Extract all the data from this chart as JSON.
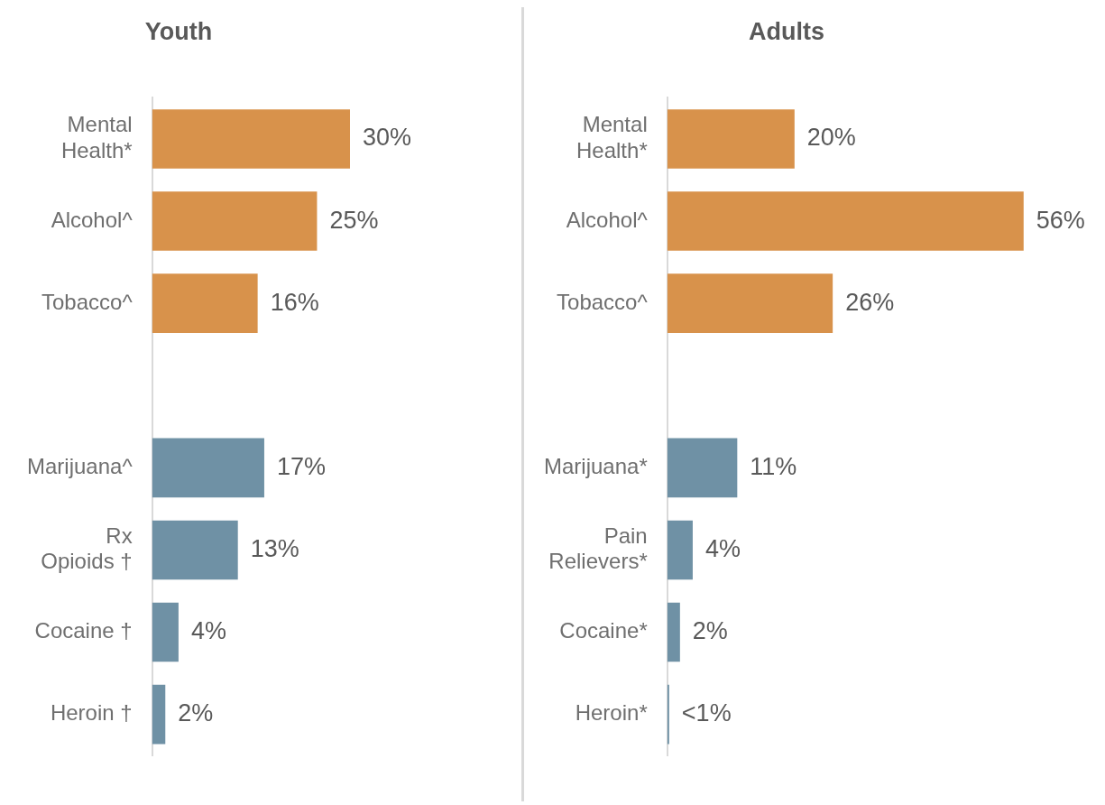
{
  "chart_data": [
    {
      "type": "bar",
      "orientation": "horizontal",
      "title": "Youth",
      "categories": [
        "Mental Health*",
        "Alcohol^",
        "Tobacco^",
        null,
        "Marijuana^",
        "Rx Opioids †",
        "Cocaine †",
        "Heroin †"
      ],
      "values": [
        30,
        25,
        16,
        null,
        17,
        13,
        4,
        2
      ],
      "colors": [
        "#d8924b",
        "#d8924b",
        "#d8924b",
        "#d8924b",
        "#6f91a5",
        "#6f91a5",
        "#6f91a5",
        "#6f91a5"
      ],
      "value_labels": [
        "30%",
        "25%",
        "16%",
        null,
        "17%",
        "13%",
        "4%",
        "2%"
      ],
      "tick_labels": "y",
      "grid": false
    },
    {
      "type": "bar",
      "orientation": "horizontal",
      "title": "Adults",
      "categories": [
        "Mental Health*",
        "Alcohol^",
        "Tobacco^",
        null,
        "Marijuana*",
        "Pain Relievers*",
        "Cocaine*",
        "Heroin*"
      ],
      "values": [
        20,
        56,
        26,
        null,
        11,
        4,
        2,
        0.3
      ],
      "colors": [
        "#d8924b",
        "#d8924b",
        "#d8924b",
        "#d8924b",
        "#6f91a5",
        "#6f91a5",
        "#6f91a5",
        "#6f91a5"
      ],
      "value_labels": [
        "20%",
        "56%",
        "26%",
        null,
        "11%",
        "4%",
        "2%",
        "<1%"
      ],
      "tick_labels": "y",
      "grid": false
    }
  ]
}
